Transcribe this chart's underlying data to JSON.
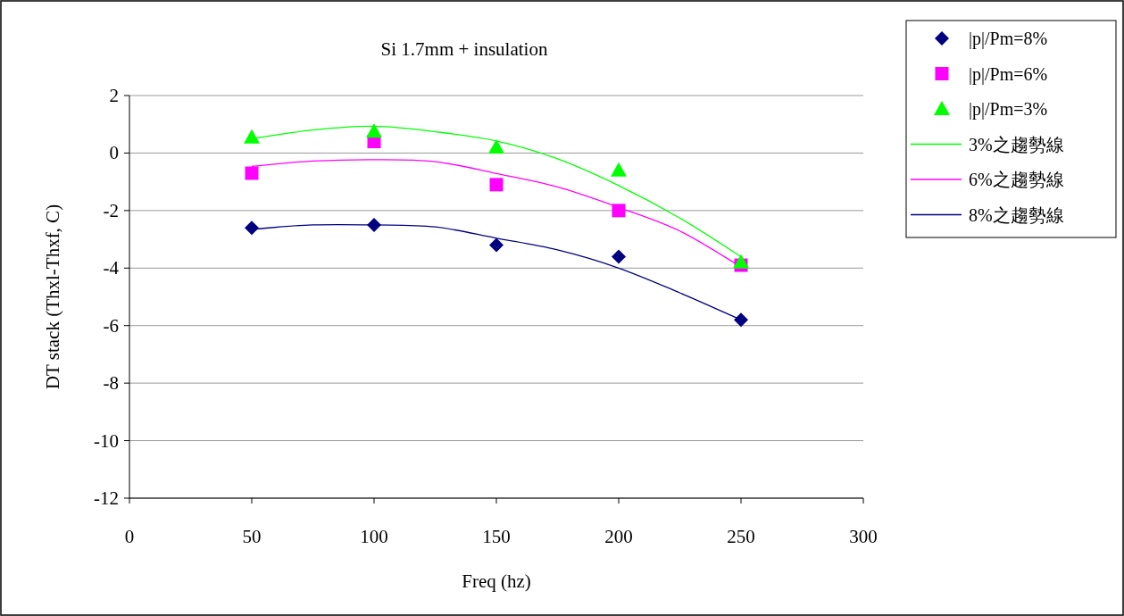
{
  "chart_data": {
    "type": "scatter",
    "title": "Si 1.7mm + insulation",
    "xlabel": "Freq (hz)",
    "ylabel": "DT stack (Thxl-Thxf, C)",
    "xlim": [
      0,
      300
    ],
    "xticks": [
      0,
      50,
      100,
      150,
      200,
      250,
      300
    ],
    "ylim": [
      -12,
      2
    ],
    "yticks": [
      -12,
      -10,
      -8,
      -6,
      -4,
      -2,
      0,
      2
    ],
    "grid": "y",
    "legend": "top right",
    "series": [
      {
        "name": "|p|/Pm=8%",
        "marker": "diamond",
        "color": "#000080",
        "x": [
          50,
          100,
          150,
          200,
          250
        ],
        "values": [
          -2.6,
          -2.5,
          -3.2,
          -3.6,
          -5.8
        ]
      },
      {
        "name": "|p|/Pm=6%",
        "marker": "square",
        "color": "#ff00ff",
        "x": [
          50,
          100,
          150,
          200,
          250
        ],
        "values": [
          -0.7,
          0.4,
          -1.1,
          -2.0,
          -3.9
        ]
      },
      {
        "name": "|p|/Pm=3%",
        "marker": "triangle",
        "color": "#00ff00",
        "x": [
          50,
          100,
          150,
          200,
          250
        ],
        "values": [
          0.55,
          0.75,
          0.2,
          -0.6,
          -3.8
        ]
      },
      {
        "name": "3%之趨勢線",
        "type": "line",
        "color": "#00ff00",
        "x": [
          50,
          75,
          100,
          125,
          150,
          175,
          200,
          225,
          250
        ],
        "values": [
          0.5,
          0.8,
          0.93,
          0.74,
          0.42,
          -0.2,
          -1.13,
          -2.26,
          -3.6
        ]
      },
      {
        "name": "6%之趨勢線",
        "type": "line",
        "color": "#ff00ff",
        "x": [
          50,
          75,
          100,
          125,
          150,
          175,
          200,
          225,
          250
        ],
        "values": [
          -0.46,
          -0.28,
          -0.23,
          -0.3,
          -0.71,
          -1.18,
          -1.89,
          -2.71,
          -3.96
        ]
      },
      {
        "name": "8%之趨勢線",
        "type": "line",
        "color": "#000080",
        "x": [
          50,
          75,
          100,
          125,
          150,
          175,
          200,
          225,
          250
        ],
        "values": [
          -2.65,
          -2.5,
          -2.5,
          -2.57,
          -2.96,
          -3.37,
          -4.0,
          -4.86,
          -5.8
        ]
      }
    ]
  }
}
